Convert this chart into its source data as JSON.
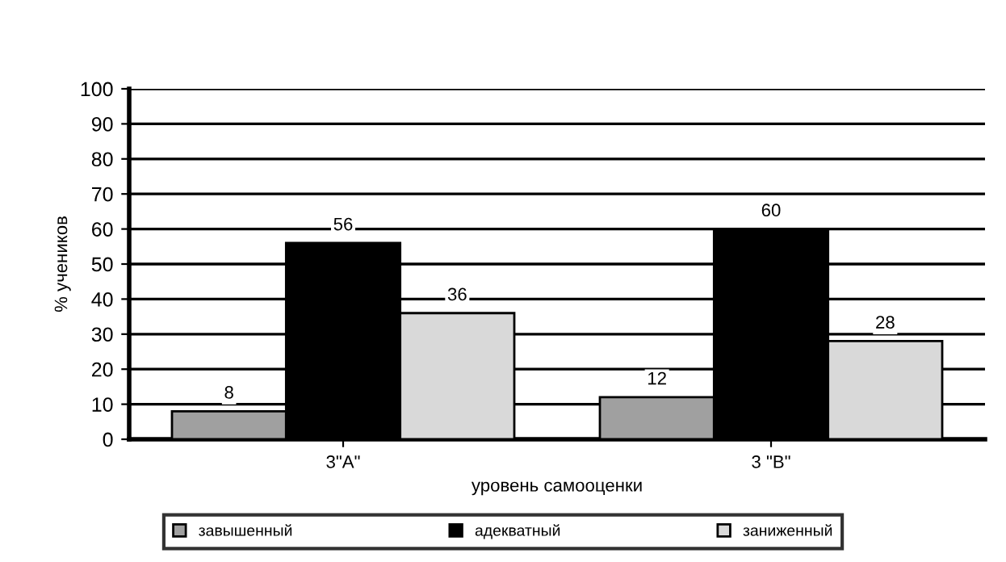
{
  "chart_data": {
    "type": "bar",
    "xlabel": "уровень самооценки",
    "ylabel": "% учеников",
    "categories": [
      "3\"А\"",
      "3 \"В\""
    ],
    "series": [
      {
        "name": "завышенный",
        "color": "#a0a0a0",
        "values": [
          8,
          12
        ]
      },
      {
        "name": "адекватный",
        "color": "#000000",
        "values": [
          56,
          60
        ]
      },
      {
        "name": "заниженный",
        "color": "#d9d9d9",
        "values": [
          36,
          28
        ]
      }
    ],
    "ylim": [
      0,
      100
    ],
    "yticks": [
      0,
      10,
      20,
      30,
      40,
      50,
      60,
      70,
      80,
      90,
      100
    ],
    "grid": "y",
    "legend": "bottom",
    "data_labels": true
  }
}
